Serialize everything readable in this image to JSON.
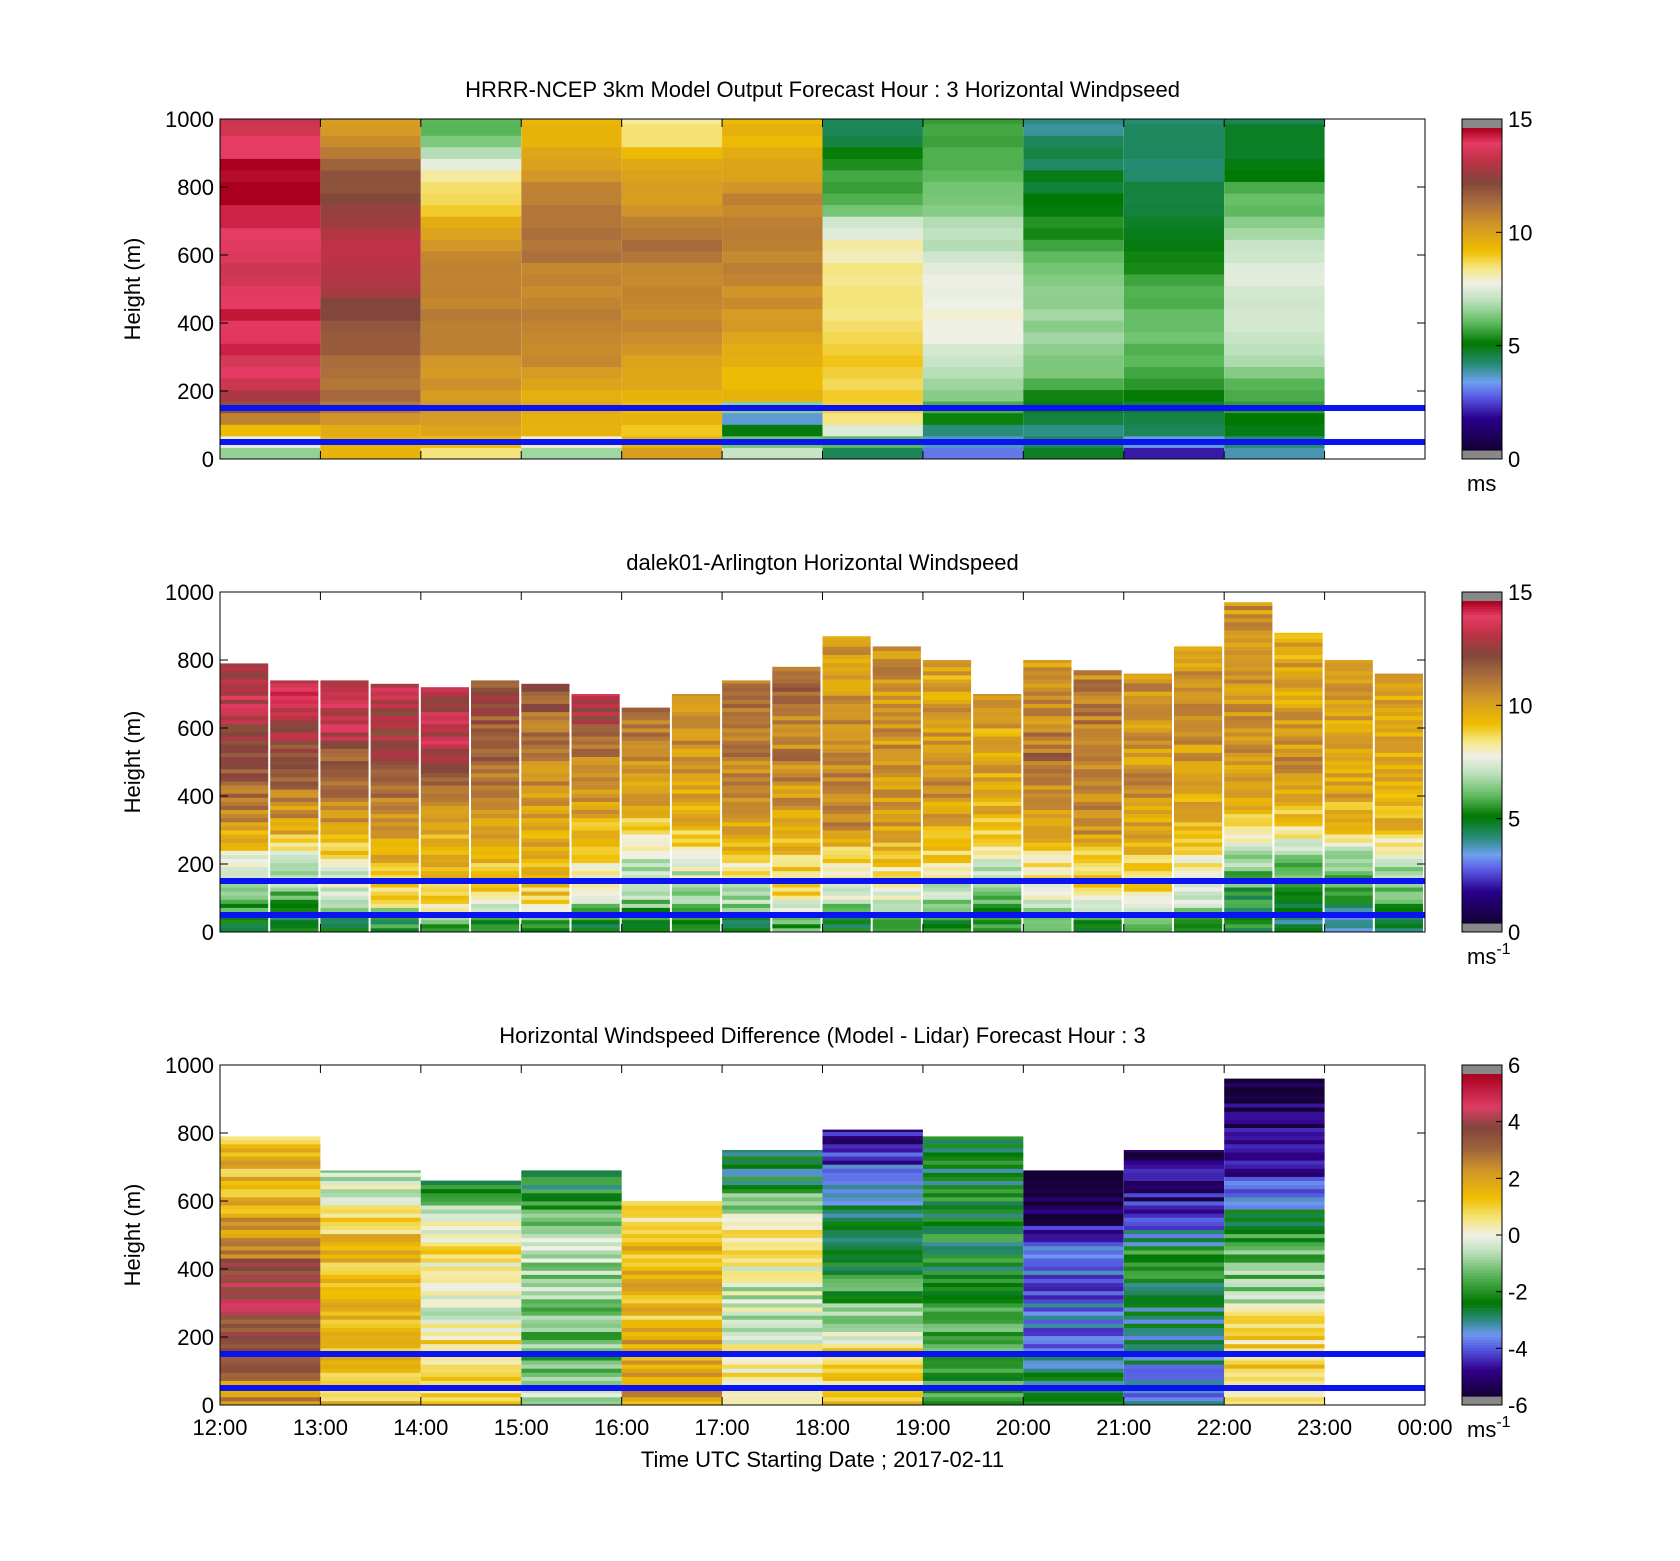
{
  "panels": [
    {
      "key": "model",
      "title": "HRRR-NCEP 3km Model Output   Forecast Hour : 3 Horizontal Windpseed",
      "ylabel": "Height (m)",
      "ylim": [
        0,
        1000
      ],
      "yticks": [
        "0",
        "200",
        "400",
        "600",
        "800",
        "1000"
      ],
      "colorbar": {
        "ticks": [
          "0",
          "5",
          "10",
          "15"
        ],
        "range": [
          0,
          15
        ],
        "unit": "ms",
        "unit_sup": ""
      },
      "reference_lines_m": [
        50,
        150
      ]
    },
    {
      "key": "lidar",
      "title": "dalek01-Arlington  Horizontal Windspeed",
      "ylabel": "Height (m)",
      "ylim": [
        0,
        1000
      ],
      "yticks": [
        "0",
        "200",
        "400",
        "600",
        "800",
        "1000"
      ],
      "colorbar": {
        "ticks": [
          "0",
          "5",
          "10",
          "15"
        ],
        "range": [
          0,
          15
        ],
        "unit": "ms",
        "unit_sup": "-1"
      },
      "reference_lines_m": [
        50,
        150
      ]
    },
    {
      "key": "diff",
      "title": "Horizontal Windspeed Difference (Model - Lidar) Forecast Hour : 3",
      "ylabel": "Height (m)",
      "ylim": [
        0,
        1000
      ],
      "yticks": [
        "0",
        "200",
        "400",
        "600",
        "800",
        "1000"
      ],
      "colorbar": {
        "ticks": [
          "-6",
          "-4",
          "-2",
          "0",
          "2",
          "4",
          "6"
        ],
        "range": [
          -6,
          6
        ],
        "unit": "ms",
        "unit_sup": "-1"
      },
      "reference_lines_m": [
        50,
        150
      ]
    }
  ],
  "xaxis": {
    "ticks": [
      "12:00",
      "13:00",
      "14:00",
      "15:00",
      "16:00",
      "17:00",
      "18:00",
      "19:00",
      "20:00",
      "21:00",
      "22:00",
      "23:00",
      "00:00"
    ],
    "xlabel": "Time UTC  Starting Date ; 2017-02-11"
  },
  "colors": {
    "reference_line": "#0a14f0",
    "nodata": "#888888"
  },
  "chart_data": [
    {
      "type": "heatmap",
      "title": "HRRR-NCEP 3km Model Output   Forecast Hour : 3 Horizontal Windpseed",
      "ylabel": "Height (m)",
      "ylim": [
        0,
        1000
      ],
      "clim": [
        0,
        15
      ],
      "x_hours": [
        "12:00",
        "13:00",
        "14:00",
        "15:00",
        "16:00",
        "17:00",
        "18:00",
        "19:00",
        "20:00",
        "21:00",
        "22:00"
      ],
      "height_levels_m": [
        25,
        75,
        125,
        175,
        250,
        350,
        450,
        550,
        650,
        750,
        850,
        950
      ],
      "windspeed_ms": [
        [
          6.5,
          9.5,
          8.5,
          6.5,
          10.0,
          7.0,
          4.5,
          3.0,
          4.5,
          2.0,
          3.5
        ],
        [
          9.0,
          9.5,
          10.0,
          9.5,
          9.0,
          5.5,
          7.5,
          4.0,
          4.0,
          4.5,
          5.0
        ],
        [
          11.0,
          10.5,
          10.5,
          10.0,
          9.5,
          3.0,
          8.5,
          5.0,
          4.5,
          4.5,
          5.0
        ],
        [
          13.0,
          11.5,
          10.5,
          9.5,
          9.5,
          9.5,
          9.0,
          6.5,
          5.0,
          5.0,
          5.5
        ],
        [
          14.0,
          11.5,
          10.5,
          10.5,
          10.0,
          9.5,
          9.0,
          7.0,
          6.0,
          5.5,
          6.5
        ],
        [
          14.5,
          12.0,
          11.0,
          11.0,
          10.5,
          10.0,
          9.0,
          7.5,
          6.5,
          6.0,
          7.0
        ],
        [
          14.5,
          12.5,
          11.0,
          11.0,
          11.0,
          10.5,
          8.5,
          8.0,
          6.5,
          6.0,
          7.5
        ],
        [
          14.0,
          13.5,
          11.0,
          11.0,
          11.0,
          11.0,
          8.5,
          7.5,
          6.0,
          5.5,
          7.5
        ],
        [
          14.0,
          13.5,
          10.5,
          11.5,
          11.5,
          11.0,
          8.0,
          7.0,
          5.5,
          5.0,
          7.0
        ],
        [
          15.0,
          12.5,
          9.0,
          11.0,
          10.5,
          11.0,
          6.0,
          6.5,
          5.0,
          4.5,
          6.0
        ],
        [
          15.0,
          12.0,
          8.0,
          10.5,
          10.0,
          10.0,
          5.5,
          6.0,
          4.5,
          4.0,
          5.0
        ],
        [
          14.0,
          10.5,
          6.0,
          9.5,
          8.5,
          9.5,
          4.5,
          5.5,
          4.0,
          4.0,
          4.5
        ]
      ]
    },
    {
      "type": "heatmap",
      "title": "dalek01-Arlington  Horizontal Windspeed",
      "ylabel": "Height (m)",
      "ylim": [
        0,
        1000
      ],
      "clim": [
        0,
        15
      ],
      "x_hours": [
        "12:00",
        "12:30",
        "13:00",
        "13:30",
        "14:00",
        "14:30",
        "15:00",
        "15:30",
        "16:00",
        "16:30",
        "17:00",
        "17:30",
        "18:00",
        "18:30",
        "19:00",
        "19:30",
        "20:00",
        "20:30",
        "21:00",
        "21:30",
        "22:00",
        "22:30",
        "23:00",
        "23:30"
      ],
      "max_height_m": [
        790,
        740,
        740,
        730,
        720,
        740,
        730,
        700,
        660,
        700,
        740,
        780,
        870,
        840,
        800,
        700,
        800,
        770,
        760,
        840,
        970,
        880,
        800,
        760
      ],
      "height_levels_m": [
        30,
        100,
        200,
        300,
        400,
        500,
        600,
        700
      ],
      "windspeed_ms": [
        [
          5.0,
          4.5,
          4.5,
          5.0,
          5.5,
          5.0,
          5.0,
          5.0,
          5.0,
          5.5,
          5.0,
          5.5,
          4.5,
          5.5,
          5.0,
          5.0,
          5.5,
          5.0,
          5.5,
          6.0,
          5.0,
          4.0,
          3.5,
          4.0
        ],
        [
          5.5,
          6.0,
          7.0,
          9.0,
          9.5,
          9.0,
          9.0,
          7.0,
          6.5,
          6.5,
          7.0,
          8.5,
          7.5,
          7.5,
          7.0,
          6.0,
          7.5,
          8.5,
          8.5,
          7.0,
          5.0,
          5.0,
          5.5,
          6.0
        ],
        [
          7.5,
          7.5,
          8.0,
          9.5,
          9.5,
          9.5,
          9.5,
          8.5,
          7.0,
          7.5,
          8.5,
          9.0,
          8.5,
          9.0,
          8.5,
          7.5,
          8.5,
          9.0,
          9.0,
          8.0,
          6.5,
          6.0,
          6.5,
          7.0
        ],
        [
          10.0,
          10.0,
          10.5,
          10.5,
          10.0,
          10.5,
          10.0,
          9.5,
          9.0,
          9.5,
          10.0,
          10.0,
          10.5,
          10.0,
          9.5,
          9.5,
          10.0,
          10.5,
          10.0,
          9.5,
          9.0,
          8.5,
          9.0,
          9.5
        ],
        [
          11.5,
          11.0,
          11.0,
          11.5,
          11.5,
          11.0,
          10.5,
          10.5,
          10.0,
          10.0,
          10.5,
          10.5,
          11.0,
          10.5,
          10.5,
          10.0,
          10.5,
          11.0,
          10.5,
          10.0,
          10.0,
          10.0,
          10.0,
          10.0
        ],
        [
          12.5,
          12.0,
          12.0,
          12.5,
          13.0,
          11.5,
          11.0,
          11.0,
          10.5,
          10.5,
          11.0,
          11.0,
          11.0,
          10.5,
          10.5,
          10.0,
          11.5,
          11.0,
          10.5,
          10.5,
          10.5,
          10.5,
          10.0,
          10.0
        ],
        [
          13.0,
          13.0,
          13.5,
          13.0,
          13.5,
          12.0,
          11.5,
          12.5,
          11.0,
          10.5,
          11.0,
          11.0,
          10.5,
          10.5,
          10.5,
          10.0,
          11.0,
          11.0,
          10.5,
          10.5,
          10.5,
          10.5,
          10.0,
          10.0
        ],
        [
          13.5,
          14.0,
          13.5,
          13.5,
          13.5,
          12.5,
          12.0,
          13.5,
          11.5,
          11.0,
          11.5,
          11.5,
          10.5,
          10.5,
          10.0,
          10.0,
          10.5,
          11.0,
          10.5,
          10.5,
          10.5,
          10.0,
          10.0,
          10.0
        ]
      ]
    },
    {
      "type": "heatmap",
      "title": "Horizontal Windspeed Difference (Model - Lidar) Forecast Hour : 3",
      "ylabel": "Height (m)",
      "ylim": [
        0,
        1000
      ],
      "clim": [
        -6,
        6
      ],
      "x_hours": [
        "12:00",
        "13:00",
        "14:00",
        "15:00",
        "16:00",
        "17:00",
        "18:00",
        "19:00",
        "20:00",
        "21:00",
        "22:00"
      ],
      "max_height_m": [
        790,
        690,
        660,
        690,
        600,
        750,
        810,
        790,
        690,
        750,
        960
      ],
      "height_levels_m": [
        50,
        150,
        250,
        350,
        450,
        550,
        650,
        750,
        850,
        950
      ],
      "difference_ms": [
        [
          2.5,
          1.5,
          1.0,
          -0.5,
          2.0,
          0.5,
          1.0,
          -2.0,
          -3.0,
          -4.0,
          1.0
        ],
        [
          3.5,
          1.5,
          1.0,
          -1.5,
          2.0,
          0.5,
          1.0,
          -2.0,
          -3.5,
          -3.5,
          1.0
        ],
        [
          4.0,
          1.5,
          0.0,
          -1.5,
          1.5,
          -0.5,
          -1.0,
          -1.5,
          -4.0,
          -3.0,
          0.5
        ],
        [
          4.5,
          1.5,
          0.0,
          -1.0,
          1.5,
          -0.5,
          -2.0,
          -2.0,
          -4.0,
          -2.5,
          -1.0
        ],
        [
          3.0,
          1.5,
          0.5,
          -0.5,
          1.5,
          0.5,
          -2.5,
          -2.5,
          -4.0,
          -2.0,
          -1.5
        ],
        [
          2.0,
          1.0,
          0.0,
          -1.0,
          0.5,
          0.0,
          -2.5,
          -2.5,
          -5.5,
          -5.0,
          -2.5
        ],
        [
          1.5,
          -0.5,
          -2.5,
          -2.5,
          null,
          -2.5,
          -3.5,
          -2.5,
          -6.0,
          -5.0,
          -4.5
        ],
        [
          1.5,
          null,
          null,
          null,
          null,
          -3.0,
          -5.0,
          -2.5,
          null,
          -5.5,
          -5.5
        ],
        [
          null,
          null,
          null,
          null,
          null,
          null,
          null,
          -2.0,
          null,
          null,
          -5.5
        ],
        [
          null,
          null,
          null,
          null,
          null,
          null,
          null,
          null,
          null,
          null,
          -5.5
        ]
      ]
    }
  ]
}
